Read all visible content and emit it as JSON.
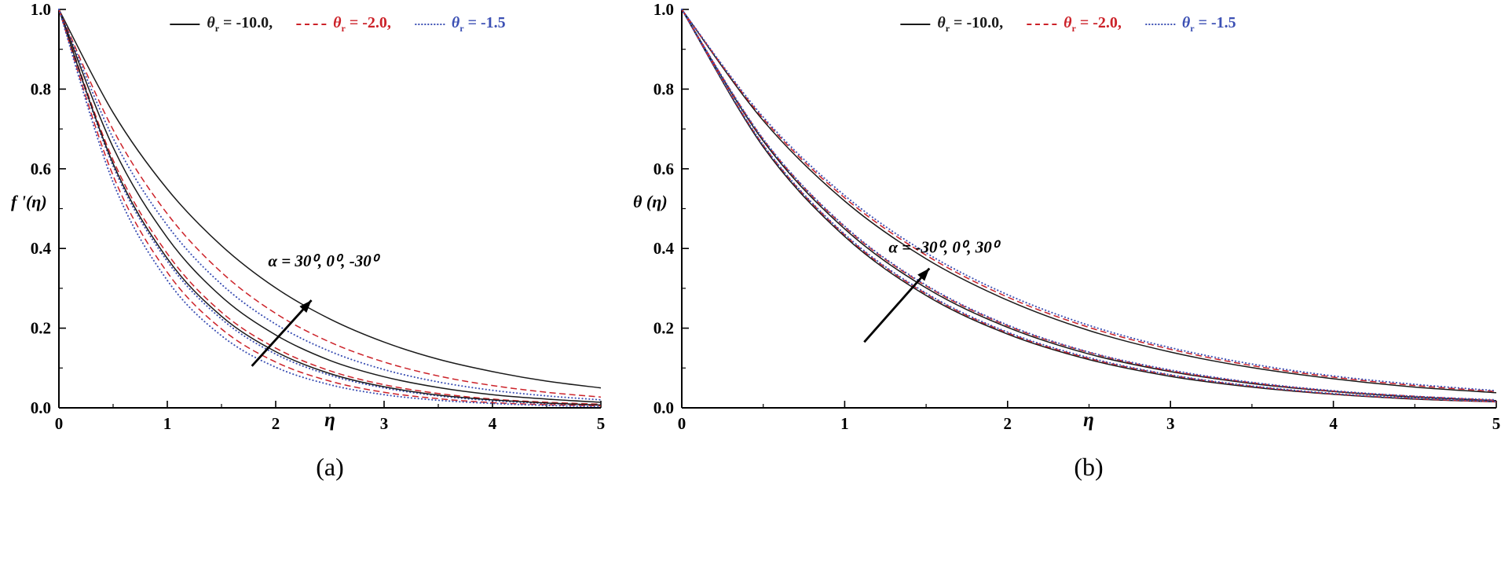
{
  "colors": {
    "black": "#1a1a1a",
    "red": "#cc2229",
    "blue": "#3c50b4",
    "axis": "#000000"
  },
  "chart_data": [
    {
      "type": "line",
      "tag": "(a)",
      "xlabel": "η",
      "ylabel": "f '(η)",
      "xlim": [
        0,
        5
      ],
      "ylim": [
        0,
        1
      ],
      "xticks": [
        0,
        1,
        2,
        3,
        4,
        5
      ],
      "yticks": [
        0,
        0.2,
        0.4,
        0.6,
        0.8,
        1
      ],
      "x_minor_ticks": [
        0.5,
        1.5,
        2.5,
        3.5,
        4.5
      ],
      "y_minor_ticks": [
        0.1,
        0.3,
        0.5,
        0.7,
        0.9
      ],
      "grid": false,
      "legend_position": "top-center",
      "legend": [
        {
          "symbol": "θ",
          "subscript": "r",
          "value": "= -10.0,",
          "color": "#1a1a1a",
          "style": "solid",
          "label_color": "#1a1a1a"
        },
        {
          "symbol": "θ",
          "subscript": "r",
          "value": "= -2.0,",
          "color": "#cc2229",
          "style": "dashed",
          "label_color": "#cc2229"
        },
        {
          "symbol": "θ",
          "subscript": "r",
          "value": "= -1.5",
          "color": "#3c50b4",
          "style": "dotted",
          "label_color": "#3c50b4"
        }
      ],
      "annotation": {
        "text": "α = 30⁰, 0⁰, -30⁰",
        "text_pos": [
          1.93,
          0.355
        ],
        "arrow_tail": [
          1.78,
          0.105
        ],
        "arrow_tip": [
          2.33,
          0.27
        ]
      },
      "x": [
        0,
        0.5,
        1,
        1.5,
        2,
        2.5,
        3,
        3.5,
        4,
        4.5,
        5
      ],
      "series": [
        {
          "name": "θr = -10.0, α = -30°",
          "color": "#1a1a1a",
          "style": "solid",
          "y": [
            1,
            0.741,
            0.549,
            0.407,
            0.301,
            0.223,
            0.165,
            0.122,
            0.091,
            0.067,
            0.05
          ]
        },
        {
          "name": "θr = -2.0, α = -30°",
          "color": "#cc2229",
          "style": "dashed",
          "y": [
            1,
            0.698,
            0.487,
            0.34,
            0.237,
            0.165,
            0.115,
            0.08,
            0.056,
            0.039,
            0.027
          ]
        },
        {
          "name": "θr = -1.5, α = -30°",
          "color": "#3c50b4",
          "style": "dotted",
          "y": [
            1,
            0.677,
            0.458,
            0.31,
            0.21,
            0.142,
            0.096,
            0.065,
            0.044,
            0.03,
            0.02
          ]
        },
        {
          "name": "θr = -10.0, α = 0°",
          "color": "#1a1a1a",
          "style": "solid",
          "y": [
            1,
            0.654,
            0.427,
            0.279,
            0.183,
            0.119,
            0.078,
            0.051,
            0.033,
            0.022,
            0.014
          ]
        },
        {
          "name": "θr = -2.0, α = 0°",
          "color": "#cc2229",
          "style": "dashed",
          "y": [
            1,
            0.622,
            0.387,
            0.24,
            0.15,
            0.093,
            0.058,
            0.036,
            0.022,
            0.014,
            0.009
          ]
        },
        {
          "name": "θr = -1.5, α = 0°",
          "color": "#3c50b4",
          "style": "dotted",
          "y": [
            1,
            0.607,
            0.368,
            0.223,
            0.135,
            0.082,
            0.05,
            0.03,
            0.018,
            0.011,
            0.007
          ]
        },
        {
          "name": "θr = -10.0, α = 30°",
          "color": "#1a1a1a",
          "style": "solid",
          "y": [
            1,
            0.613,
            0.375,
            0.23,
            0.141,
            0.086,
            0.053,
            0.032,
            0.02,
            0.012,
            0.007
          ]
        },
        {
          "name": "θr = -2.0, α = 30°",
          "color": "#cc2229",
          "style": "dashed",
          "y": [
            1,
            0.583,
            0.34,
            0.198,
            0.115,
            0.067,
            0.039,
            0.023,
            0.013,
            0.008,
            0.005
          ]
        },
        {
          "name": "θr = -1.5, α = 30°",
          "color": "#3c50b4",
          "style": "dotted",
          "y": [
            1,
            0.566,
            0.32,
            0.181,
            0.102,
            0.058,
            0.033,
            0.019,
            0.011,
            0.006,
            0.003
          ]
        }
      ]
    },
    {
      "type": "line",
      "tag": "(b)",
      "xlabel": "η",
      "ylabel": "θ (η)",
      "xlim": [
        0,
        5
      ],
      "ylim": [
        0,
        1
      ],
      "xticks": [
        0,
        1,
        2,
        3,
        4,
        5
      ],
      "yticks": [
        0,
        0.2,
        0.4,
        0.6,
        0.8,
        1
      ],
      "x_minor_ticks": [
        0.5,
        1.5,
        2.5,
        3.5,
        4.5
      ],
      "y_minor_ticks": [
        0.1,
        0.3,
        0.5,
        0.7,
        0.9
      ],
      "grid": false,
      "legend_position": "top-center",
      "legend": [
        {
          "symbol": "θ",
          "subscript": "r",
          "value": "= -10.0,",
          "color": "#1a1a1a",
          "style": "solid",
          "label_color": "#1a1a1a"
        },
        {
          "symbol": "θ",
          "subscript": "r",
          "value": "= -2.0,",
          "color": "#cc2229",
          "style": "dashed",
          "label_color": "#cc2229"
        },
        {
          "symbol": "θ",
          "subscript": "r",
          "value": "= -1.5",
          "color": "#3c50b4",
          "style": "dotted",
          "label_color": "#3c50b4"
        }
      ],
      "annotation": {
        "text": "α = -30⁰, 0⁰, 30⁰",
        "text_pos": [
          1.27,
          0.39
        ],
        "arrow_tail": [
          1.12,
          0.165
        ],
        "arrow_tip": [
          1.52,
          0.35
        ]
      },
      "x": [
        0,
        0.5,
        1,
        1.5,
        2,
        2.5,
        3,
        3.5,
        4,
        4.5,
        5
      ],
      "series": [
        {
          "name": "θr = -10.0, α = 30°",
          "color": "#1a1a1a",
          "style": "solid",
          "y": [
            1,
            0.721,
            0.519,
            0.374,
            0.27,
            0.194,
            0.14,
            0.101,
            0.073,
            0.052,
            0.038
          ]
        },
        {
          "name": "θr = -2.0, α = 30°",
          "color": "#cc2229",
          "style": "dashed",
          "y": [
            1,
            0.726,
            0.527,
            0.383,
            0.278,
            0.202,
            0.147,
            0.106,
            0.077,
            0.056,
            0.041
          ]
        },
        {
          "name": "θr = -1.5, α = 30°",
          "color": "#3c50b4",
          "style": "dotted",
          "y": [
            1,
            0.73,
            0.533,
            0.389,
            0.284,
            0.207,
            0.151,
            0.11,
            0.08,
            0.059,
            0.043
          ]
        },
        {
          "name": "θr = -10.0, α = 0°",
          "color": "#1a1a1a",
          "style": "solid",
          "y": [
            1,
            0.67,
            0.449,
            0.301,
            0.202,
            0.135,
            0.091,
            0.061,
            0.041,
            0.027,
            0.018
          ]
        },
        {
          "name": "θr = -2.0, α = 0°",
          "color": "#cc2229",
          "style": "dashed",
          "y": [
            1,
            0.674,
            0.454,
            0.306,
            0.206,
            0.139,
            0.093,
            0.063,
            0.042,
            0.029,
            0.019
          ]
        },
        {
          "name": "θr = -1.5, α = 0°",
          "color": "#3c50b4",
          "style": "dotted",
          "y": [
            1,
            0.675,
            0.456,
            0.308,
            0.208,
            0.14,
            0.095,
            0.064,
            0.043,
            0.029,
            0.02
          ]
        },
        {
          "name": "θr = -10.0, α = -30°",
          "color": "#1a1a1a",
          "style": "solid",
          "y": [
            1,
            0.655,
            0.43,
            0.282,
            0.185,
            0.121,
            0.079,
            0.052,
            0.034,
            0.022,
            0.015
          ]
        },
        {
          "name": "θr = -2.0, α = -30°",
          "color": "#cc2229",
          "style": "dashed",
          "y": [
            1,
            0.659,
            0.434,
            0.286,
            0.188,
            0.124,
            0.082,
            0.054,
            0.035,
            0.023,
            0.015
          ]
        },
        {
          "name": "θr = -1.5, α = -30°",
          "color": "#3c50b4",
          "style": "dotted",
          "y": [
            1,
            0.66,
            0.436,
            0.288,
            0.19,
            0.126,
            0.083,
            0.055,
            0.036,
            0.024,
            0.016
          ]
        }
      ]
    }
  ]
}
